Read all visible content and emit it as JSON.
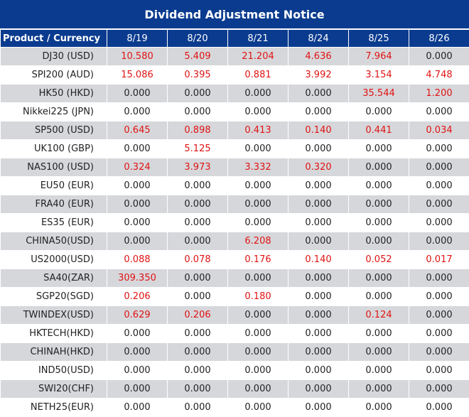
{
  "notice": {
    "title": "Dividend Adjustment Notice",
    "header_label": "Product / Currency",
    "dates": [
      "8/19",
      "8/20",
      "8/21",
      "8/24",
      "8/25",
      "8/26"
    ],
    "colors": {
      "header_bg": "#0a3b8f",
      "header_text": "#ffffff",
      "stripe": "#d6d7db",
      "positive_value": "#e01313",
      "zero_value": "#222222"
    },
    "rows": [
      {
        "product": "DJ30 (USD)",
        "values": [
          "10.580",
          "5.409",
          "21.204",
          "4.636",
          "7.964",
          "0.000"
        ]
      },
      {
        "product": "SPI200 (AUD)",
        "values": [
          "15.086",
          "0.395",
          "0.881",
          "3.992",
          "3.154",
          "4.748"
        ]
      },
      {
        "product": "HK50 (HKD)",
        "values": [
          "0.000",
          "0.000",
          "0.000",
          "0.000",
          "35.544",
          "1.200"
        ]
      },
      {
        "product": "Nikkei225 (JPN)",
        "values": [
          "0.000",
          "0.000",
          "0.000",
          "0.000",
          "0.000",
          "0.000"
        ]
      },
      {
        "product": "SP500 (USD)",
        "values": [
          "0.645",
          "0.898",
          "0.413",
          "0.140",
          "0.441",
          "0.034"
        ]
      },
      {
        "product": "UK100 (GBP)",
        "values": [
          "0.000",
          "5.125",
          "0.000",
          "0.000",
          "0.000",
          "0.000"
        ]
      },
      {
        "product": "NAS100 (USD)",
        "values": [
          "0.324",
          "3.973",
          "3.332",
          "0.320",
          "0.000",
          "0.000"
        ]
      },
      {
        "product": "EU50 (EUR)",
        "values": [
          "0.000",
          "0.000",
          "0.000",
          "0.000",
          "0.000",
          "0.000"
        ]
      },
      {
        "product": "FRA40 (EUR)",
        "values": [
          "0.000",
          "0.000",
          "0.000",
          "0.000",
          "0.000",
          "0.000"
        ]
      },
      {
        "product": "ES35 (EUR)",
        "values": [
          "0.000",
          "0.000",
          "0.000",
          "0.000",
          "0.000",
          "0.000"
        ]
      },
      {
        "product": "CHINA50(USD)",
        "values": [
          "0.000",
          "0.000",
          "6.208",
          "0.000",
          "0.000",
          "0.000"
        ]
      },
      {
        "product": "US2000(USD)",
        "values": [
          "0.088",
          "0.078",
          "0.176",
          "0.140",
          "0.052",
          "0.017"
        ]
      },
      {
        "product": "SA40(ZAR)",
        "values": [
          "309.350",
          "0.000",
          "0.000",
          "0.000",
          "0.000",
          "0.000"
        ]
      },
      {
        "product": "SGP20(SGD)",
        "values": [
          "0.206",
          "0.000",
          "0.180",
          "0.000",
          "0.000",
          "0.000"
        ]
      },
      {
        "product": "TWINDEX(USD)",
        "values": [
          "0.629",
          "0.206",
          "0.000",
          "0.000",
          "0.124",
          "0.000"
        ]
      },
      {
        "product": "HKTECH(HKD)",
        "values": [
          "0.000",
          "0.000",
          "0.000",
          "0.000",
          "0.000",
          "0.000"
        ]
      },
      {
        "product": "CHINAH(HKD)",
        "values": [
          "0.000",
          "0.000",
          "0.000",
          "0.000",
          "0.000",
          "0.000"
        ]
      },
      {
        "product": "IND50(USD)",
        "values": [
          "0.000",
          "0.000",
          "0.000",
          "0.000",
          "0.000",
          "0.000"
        ]
      },
      {
        "product": "SWI20(CHF)",
        "values": [
          "0.000",
          "0.000",
          "0.000",
          "0.000",
          "0.000",
          "0.000"
        ]
      },
      {
        "product": "NETH25(EUR)",
        "values": [
          "0.000",
          "0.000",
          "0.000",
          "0.000",
          "0.000",
          "0.000"
        ]
      }
    ]
  }
}
